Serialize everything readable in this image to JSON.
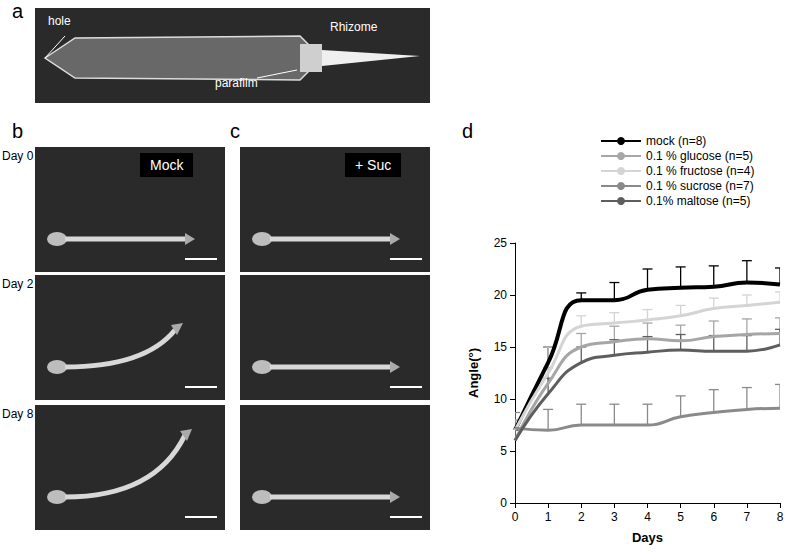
{
  "figure": {
    "panels": [
      "a",
      "b",
      "c",
      "d"
    ],
    "panel_a": {
      "labels": [
        "hole",
        "Rhizome",
        "parafilm"
      ]
    },
    "panel_b": {
      "title": "Mock"
    },
    "panel_c": {
      "title": "+ Suc"
    },
    "days": [
      "Day 0",
      "Day 2",
      "Day 8"
    ]
  },
  "chart_data": {
    "type": "line",
    "x_label": "Days",
    "y_label": "Angle(°)",
    "x": [
      0,
      1,
      2,
      3,
      4,
      5,
      6,
      7,
      8
    ],
    "xlim": [
      0,
      8
    ],
    "xticks": [
      0,
      1,
      2,
      3,
      4,
      5,
      6,
      7,
      8
    ],
    "ylim": [
      0,
      25
    ],
    "yticks": [
      0,
      5,
      10,
      15,
      20,
      25
    ],
    "grid": false,
    "legend": "top",
    "series": [
      {
        "name": "mock (n=8)",
        "color": "#000000",
        "values": [
          7,
          13.5,
          19.5,
          19.5,
          20.5,
          20.7,
          20.8,
          21.2,
          21
        ],
        "errors": [
          1,
          1.5,
          0.7,
          1.7,
          2,
          2,
          2,
          2.1,
          1.6
        ]
      },
      {
        "name": "0.1 % glucose (n=5)",
        "color": "#a6a6a6",
        "values": [
          6,
          11.5,
          15,
          15.5,
          15.8,
          15.6,
          16,
          16.2,
          16.3
        ],
        "errors": [
          1,
          1.5,
          1.3,
          1.5,
          1.5,
          1.5,
          1.5,
          1.5,
          1.5
        ]
      },
      {
        "name": "0.1 % fructose (n=4)",
        "color": "#d4d4d4",
        "values": [
          7,
          12.5,
          17,
          17.3,
          17.6,
          18,
          18.7,
          19,
          19.3
        ],
        "errors": [
          1,
          2.5,
          1,
          1,
          1,
          1,
          1,
          1,
          1
        ]
      },
      {
        "name": "0.1 % sucrose (n=7)",
        "color": "#8a8a8a",
        "values": [
          7.2,
          7,
          7.5,
          7.5,
          7.5,
          8.3,
          8.7,
          9,
          9.1
        ],
        "errors": [
          1.5,
          2,
          2,
          2,
          2,
          2,
          2.2,
          2.1,
          2.3
        ]
      },
      {
        "name": "0.1% maltose (n=5)",
        "color": "#5e5e5e",
        "values": [
          6,
          10.5,
          13.5,
          14.2,
          14.5,
          14.7,
          14.6,
          14.6,
          15.2
        ],
        "errors": [
          1,
          1.5,
          1.5,
          1.5,
          1.5,
          1.5,
          1.5,
          1.5,
          1.5
        ]
      }
    ]
  }
}
